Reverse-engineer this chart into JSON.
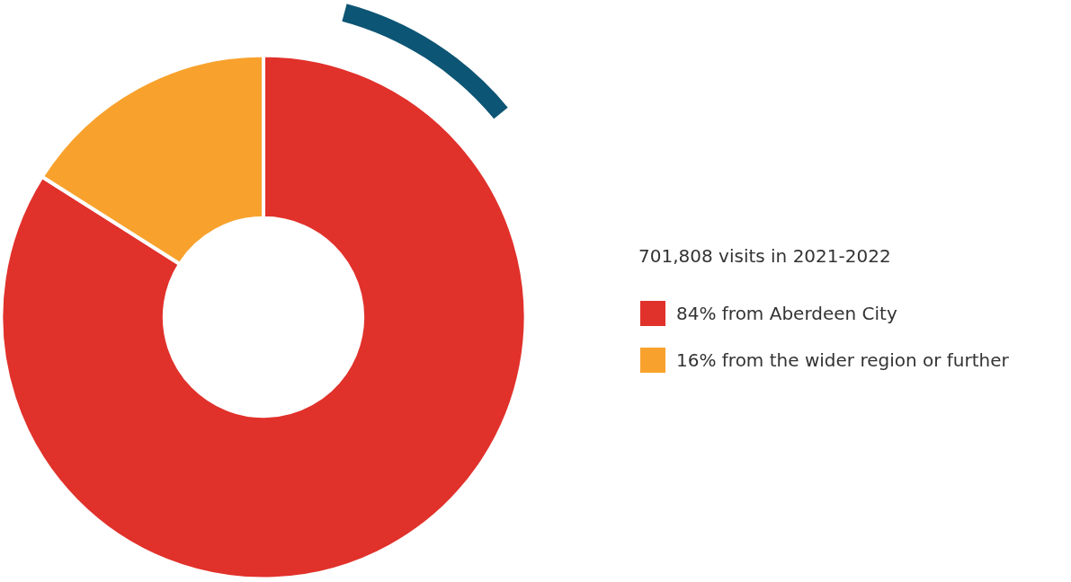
{
  "chart_data": {
    "type": "donut",
    "title": "701,808 visits in 2021-2022",
    "categories": [
      "84% from Aberdeen City",
      "16% from the wider region or further"
    ],
    "values": [
      84,
      16
    ],
    "colors": [
      "#e1312b",
      "#f8a22d"
    ],
    "legend": "right"
  }
}
